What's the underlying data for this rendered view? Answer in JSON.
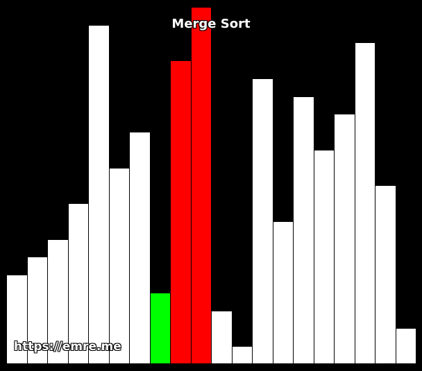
{
  "title": "Merge Sort",
  "watermark": "https://emre.me",
  "colors": {
    "background": "#000000",
    "default": "#ffffff",
    "compare": "#ff0000",
    "current": "#00ff00"
  },
  "chart_data": {
    "type": "bar",
    "ylim": [
      0,
      20
    ],
    "values": [
      5,
      6,
      7,
      9,
      19,
      11,
      13,
      4,
      17,
      20,
      3,
      1,
      16,
      8,
      15,
      12,
      14,
      18,
      10,
      2
    ],
    "states": [
      "default",
      "default",
      "default",
      "default",
      "default",
      "default",
      "default",
      "current",
      "compare",
      "compare",
      "default",
      "default",
      "default",
      "default",
      "default",
      "default",
      "default",
      "default",
      "default",
      "default"
    ]
  }
}
